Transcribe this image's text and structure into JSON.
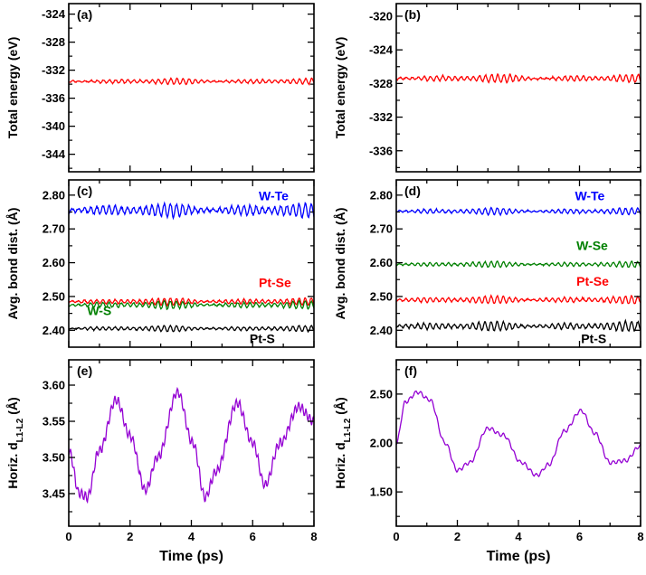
{
  "chart_data": [
    {
      "panel": "(a)",
      "type": "line",
      "ylabel": "Total energy (eV)",
      "xlim": [
        0,
        8
      ],
      "ylim": [
        -346.5,
        -322.5
      ],
      "xticks": [
        0,
        2,
        4,
        6,
        8
      ],
      "yticks": [
        -344,
        -340,
        -336,
        -332,
        -328,
        -324
      ],
      "ytick_labels": [
        "-344",
        "-340",
        "-336",
        "-332",
        "-328",
        "-324"
      ],
      "series": [
        {
          "name": "Total energy",
          "color": "#ff0000",
          "mean": -333.6,
          "amp": 0.45,
          "period": 0.2,
          "kind": "noise"
        }
      ]
    },
    {
      "panel": "(b)",
      "type": "line",
      "ylabel": "Total energy (eV)",
      "xlim": [
        0,
        8
      ],
      "ylim": [
        -338.5,
        -318.5
      ],
      "xticks": [
        0,
        2,
        4,
        6,
        8
      ],
      "yticks": [
        -336,
        -332,
        -328,
        -324,
        -320
      ],
      "ytick_labels": [
        "-336",
        "-332",
        "-328",
        "-324",
        "-320"
      ],
      "series": [
        {
          "name": "Total energy",
          "color": "#ff0000",
          "mean": -327.4,
          "amp": 0.5,
          "period": 0.2,
          "kind": "noise"
        }
      ]
    },
    {
      "panel": "(c)",
      "type": "line",
      "ylabel": "Avg. bond dist. (Å)",
      "xlim": [
        0,
        8
      ],
      "ylim": [
        2.35,
        2.845
      ],
      "xticks": [
        0,
        2,
        4,
        6,
        8
      ],
      "yticks": [
        2.4,
        2.5,
        2.6,
        2.7,
        2.8
      ],
      "ytick_labels": [
        "2.40",
        "2.50",
        "2.60",
        "2.70",
        "2.80"
      ],
      "series": [
        {
          "name": "W-Te",
          "color": "#0000ff",
          "mean": 2.755,
          "amp": 0.022,
          "period": 0.2,
          "kind": "noise"
        },
        {
          "name": "Pt-Se",
          "color": "#ff0000",
          "mean": 2.485,
          "amp": 0.011,
          "period": 0.2,
          "kind": "noise"
        },
        {
          "name": "W-S",
          "color": "#008000",
          "mean": 2.475,
          "amp": 0.012,
          "period": 0.2,
          "kind": "noise"
        },
        {
          "name": "Pt-S",
          "color": "#000000",
          "mean": 2.405,
          "amp": 0.009,
          "period": 0.2,
          "kind": "noise"
        }
      ],
      "labels": [
        {
          "text": "W-Te",
          "color": "#0000ff",
          "x": 6.2,
          "y": 2.785
        },
        {
          "text": "Pt-Se",
          "color": "#ff0000",
          "x": 6.2,
          "y": 2.528
        },
        {
          "text": "W-S",
          "color": "#008000",
          "x": 0.6,
          "y": 2.445
        },
        {
          "text": "Pt-S",
          "color": "#000000",
          "x": 5.9,
          "y": 2.362
        }
      ]
    },
    {
      "panel": "(d)",
      "type": "line",
      "ylabel": "Avg. bond dist. (Å)",
      "xlim": [
        0,
        8
      ],
      "ylim": [
        2.35,
        2.845
      ],
      "xticks": [
        0,
        2,
        4,
        6,
        8
      ],
      "yticks": [
        2.4,
        2.5,
        2.6,
        2.7,
        2.8
      ],
      "ytick_labels": [
        "2.40",
        "2.50",
        "2.60",
        "2.70",
        "2.80"
      ],
      "series": [
        {
          "name": "W-Te",
          "color": "#0000ff",
          "mean": 2.752,
          "amp": 0.01,
          "period": 0.2,
          "kind": "noise"
        },
        {
          "name": "W-Se",
          "color": "#008000",
          "mean": 2.595,
          "amp": 0.009,
          "period": 0.2,
          "kind": "noise"
        },
        {
          "name": "Pt-Se",
          "color": "#ff0000",
          "mean": 2.49,
          "amp": 0.012,
          "period": 0.2,
          "kind": "noise"
        },
        {
          "name": "Pt-S",
          "color": "#000000",
          "mean": 2.412,
          "amp": 0.014,
          "period": 0.2,
          "kind": "noise"
        }
      ],
      "labels": [
        {
          "text": "W-Te",
          "color": "#0000ff",
          "x": 5.85,
          "y": 2.785
        },
        {
          "text": "W-Se",
          "color": "#008000",
          "x": 5.9,
          "y": 2.638
        },
        {
          "text": "Pt-Se",
          "color": "#ff0000",
          "x": 5.9,
          "y": 2.532
        },
        {
          "text": "Pt-S",
          "color": "#000000",
          "x": 6.05,
          "y": 2.362
        }
      ]
    },
    {
      "panel": "(e)",
      "type": "line",
      "ylabel": "Horiz. d",
      "ylabel_sub": "L1-L2",
      "ylabel_unit": " (Å)",
      "xlabel": "Time (ps)",
      "xlim": [
        0,
        8
      ],
      "ylim": [
        3.405,
        3.635
      ],
      "xticks": [
        0,
        2,
        4,
        6,
        8
      ],
      "xtick_labels": [
        "0",
        "2",
        "4",
        "6",
        "8"
      ],
      "yticks": [
        3.45,
        3.5,
        3.55,
        3.6
      ],
      "ytick_labels": [
        "3.45",
        "3.50",
        "3.55",
        "3.60"
      ],
      "series": [
        {
          "name": "dL1-L2",
          "color": "#9400d3",
          "kind": "keys",
          "keys": [
            [
              0,
              3.51
            ],
            [
              0.35,
              3.45
            ],
            [
              0.6,
              3.445
            ],
            [
              1.0,
              3.51
            ],
            [
              1.55,
              3.58
            ],
            [
              2.0,
              3.53
            ],
            [
              2.5,
              3.455
            ],
            [
              2.9,
              3.5
            ],
            [
              3.55,
              3.59
            ],
            [
              4.05,
              3.52
            ],
            [
              4.45,
              3.445
            ],
            [
              4.8,
              3.48
            ],
            [
              5.5,
              3.575
            ],
            [
              6.0,
              3.52
            ],
            [
              6.4,
              3.462
            ],
            [
              6.9,
              3.52
            ],
            [
              7.5,
              3.57
            ],
            [
              8.0,
              3.55
            ]
          ],
          "ripple": 0.006,
          "ripple_period": 0.12
        }
      ]
    },
    {
      "panel": "(f)",
      "type": "line",
      "ylabel": "Horiz. d",
      "ylabel_sub": "L1-L2",
      "ylabel_unit": " (Å)",
      "xlabel": "Time (ps)",
      "xlim": [
        0,
        8
      ],
      "ylim": [
        1.15,
        2.85
      ],
      "xticks": [
        0,
        2,
        4,
        6,
        8
      ],
      "xtick_labels": [
        "0",
        "2",
        "4",
        "6",
        "8"
      ],
      "yticks": [
        1.5,
        2.0,
        2.5
      ],
      "ytick_labels": [
        "1.50",
        "2.00",
        "2.50"
      ],
      "series": [
        {
          "name": "dL1-L2",
          "color": "#9400d3",
          "kind": "keys",
          "keys": [
            [
              0,
              2.0
            ],
            [
              0.3,
              2.42
            ],
            [
              0.7,
              2.52
            ],
            [
              1.1,
              2.44
            ],
            [
              1.6,
              2.0
            ],
            [
              2.0,
              1.72
            ],
            [
              2.4,
              1.8
            ],
            [
              3.0,
              2.15
            ],
            [
              3.5,
              2.08
            ],
            [
              4.1,
              1.8
            ],
            [
              4.6,
              1.67
            ],
            [
              5.0,
              1.78
            ],
            [
              5.5,
              2.12
            ],
            [
              6.05,
              2.33
            ],
            [
              6.5,
              2.1
            ],
            [
              7.0,
              1.8
            ],
            [
              7.5,
              1.82
            ],
            [
              8.0,
              1.97
            ]
          ],
          "ripple": 0.018,
          "ripple_period": 0.18
        }
      ]
    }
  ]
}
